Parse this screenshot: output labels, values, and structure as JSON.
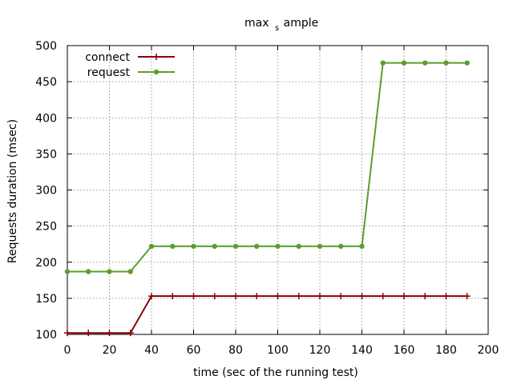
{
  "chart_data": {
    "type": "line",
    "title": {
      "main": "max",
      "sub": "s",
      "rest": "ample"
    },
    "xlabel": "time (sec of the running test)",
    "ylabel": "Requests duration (msec)",
    "xlim": [
      0,
      200
    ],
    "ylim": [
      100,
      500
    ],
    "xticks": [
      0,
      20,
      40,
      60,
      80,
      100,
      120,
      140,
      160,
      180,
      200
    ],
    "yticks": [
      100,
      150,
      200,
      250,
      300,
      350,
      400,
      450,
      500
    ],
    "grid": true,
    "legend_position": "top-left",
    "x": [
      0,
      10,
      20,
      30,
      40,
      50,
      60,
      70,
      80,
      90,
      100,
      110,
      120,
      130,
      140,
      150,
      160,
      170,
      180,
      190
    ],
    "series": [
      {
        "name": "connect",
        "color": "#8b0000",
        "marker": "plus",
        "values": [
          102,
          102,
          102,
          102,
          153,
          153,
          153,
          153,
          153,
          153,
          153,
          153,
          153,
          153,
          153,
          153,
          153,
          153,
          153,
          153
        ]
      },
      {
        "name": "request",
        "color": "#5a9e2f",
        "marker": "filled-circle",
        "values": [
          187,
          187,
          187,
          187,
          222,
          222,
          222,
          222,
          222,
          222,
          222,
          222,
          222,
          222,
          222,
          476,
          476,
          476,
          476,
          476
        ]
      }
    ]
  }
}
